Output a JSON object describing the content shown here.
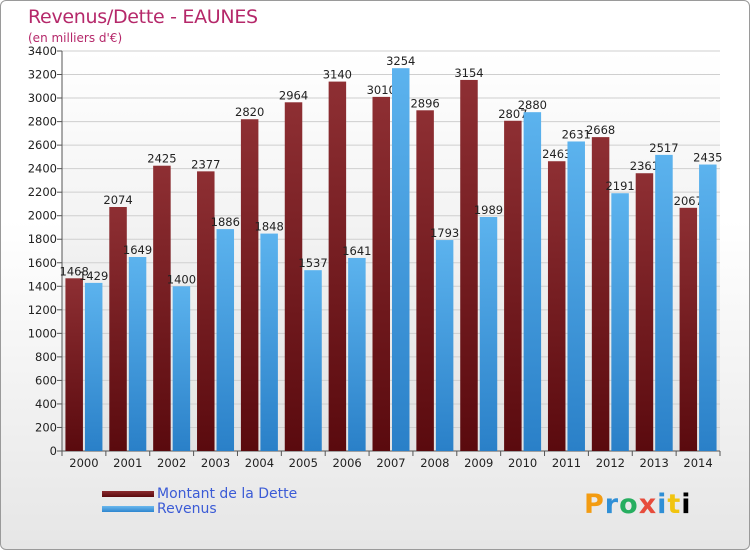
{
  "chart_data": {
    "type": "bar",
    "title": "Revenus/Dette - EAUNES",
    "subtitle": "(en milliers d'€)",
    "categories": [
      "2000",
      "2001",
      "2002",
      "2003",
      "2004",
      "2005",
      "2006",
      "2007",
      "2008",
      "2009",
      "2010",
      "2011",
      "2012",
      "2013",
      "2014"
    ],
    "series": [
      {
        "name": "Montant de la Dette",
        "color": "#7a1f24",
        "values": [
          1468,
          2074,
          2425,
          2377,
          2820,
          2964,
          3140,
          3010,
          2896,
          3154,
          2807,
          2463,
          2668,
          2361,
          2067
        ],
        "labels": [
          "1468",
          "2074",
          "2425",
          "2377",
          "2820",
          "2964",
          "3140",
          "3010",
          "2896",
          "3154",
          "2807",
          "2463",
          "2668",
          "2361",
          "2067"
        ]
      },
      {
        "name": "Revenus",
        "color": "#4ea6e6",
        "values": [
          1429,
          1649,
          1400,
          1886,
          1848,
          1537,
          1641,
          3254,
          1793,
          1989,
          2880,
          2631,
          2191,
          2517,
          2435
        ],
        "labels": [
          "1429",
          "1649",
          "1400",
          "1886",
          "1848",
          "1537",
          "1641",
          "3254",
          "1793",
          "1989",
          "2880",
          "2631",
          "2191",
          "2517",
          "2435"
        ]
      }
    ],
    "ylim": [
      0,
      3400
    ],
    "ytick_step": 200,
    "grid": true,
    "legend_position": "bottom-left"
  },
  "logo": {
    "letters": [
      "P",
      "r",
      "o",
      "x",
      "i",
      "t",
      "i"
    ]
  }
}
